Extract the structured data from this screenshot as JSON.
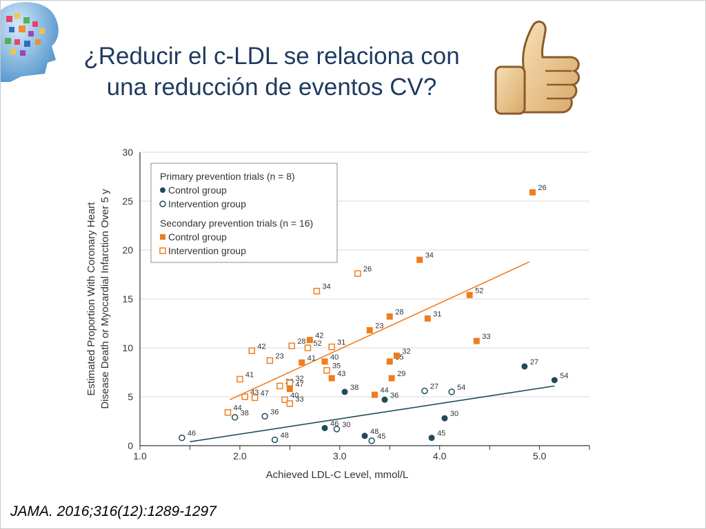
{
  "slide": {
    "title_line1": "¿Reducir el c-LDL se relaciona con",
    "title_line2": "una reducción de eventos CV?",
    "citation": "JAMA. 2016;316(12):1289-1297",
    "icons": [
      "brain-logo-icon",
      "thumbs-up-icon"
    ]
  },
  "colors": {
    "primary": "#1f4a5a",
    "secondary": "#ee7d1f",
    "title": "#1f3a5f",
    "grid": "#d9d9d9"
  },
  "chart_data": {
    "type": "scatter",
    "xlabel": "Achieved LDL-C Level, mmol/L",
    "ylabel": [
      "Estimated Proportion With Coronary Heart",
      "Disease Death or Myocardial Infarction Over 5 y"
    ],
    "xlim": [
      1.0,
      5.5
    ],
    "ylim": [
      0,
      30
    ],
    "xticks": [
      "1.0",
      "2.0",
      "3.0",
      "4.0",
      "5.0"
    ],
    "yticks": [
      "0",
      "5",
      "10",
      "15",
      "20",
      "25",
      "30"
    ],
    "grid": true,
    "legend_position": "top-left",
    "legend": {
      "heading_primary": "Primary prevention trials (n = 8)",
      "heading_secondary": "Secondary prevention trials (n = 16)",
      "control": "Control group",
      "intervention": "Intervention group"
    },
    "series": [
      {
        "name": "Control group",
        "group": "primary",
        "marker": "filled-circle",
        "points": [
          {
            "x": 2.85,
            "y": 1.8,
            "label": "46"
          },
          {
            "x": 3.05,
            "y": 5.5,
            "label": "38"
          },
          {
            "x": 3.25,
            "y": 1.0,
            "label": "48"
          },
          {
            "x": 3.45,
            "y": 4.7,
            "label": "36"
          },
          {
            "x": 3.92,
            "y": 0.8,
            "label": "45"
          },
          {
            "x": 4.05,
            "y": 2.8,
            "label": "30"
          },
          {
            "x": 4.85,
            "y": 8.1,
            "label": "27"
          },
          {
            "x": 5.15,
            "y": 6.7,
            "label": "54"
          }
        ]
      },
      {
        "name": "Intervention group",
        "group": "primary",
        "marker": "open-circle",
        "points": [
          {
            "x": 1.42,
            "y": 0.8,
            "label": "46"
          },
          {
            "x": 1.95,
            "y": 2.9,
            "label": "38"
          },
          {
            "x": 2.25,
            "y": 3.0,
            "label": "36"
          },
          {
            "x": 2.35,
            "y": 0.6,
            "label": "48"
          },
          {
            "x": 2.97,
            "y": 1.7,
            "label": "30"
          },
          {
            "x": 3.32,
            "y": 0.5,
            "label": "45"
          },
          {
            "x": 3.85,
            "y": 5.6,
            "label": "27"
          },
          {
            "x": 4.12,
            "y": 5.5,
            "label": "54"
          }
        ]
      },
      {
        "name": "Control group",
        "group": "secondary",
        "marker": "filled-square",
        "points": [
          {
            "x": 2.62,
            "y": 8.5,
            "label": "41"
          },
          {
            "x": 2.7,
            "y": 10.8,
            "label": "42"
          },
          {
            "x": 2.5,
            "y": 5.8,
            "label": "47"
          },
          {
            "x": 2.85,
            "y": 8.6,
            "label": "40"
          },
          {
            "x": 2.92,
            "y": 6.9,
            "label": "43"
          },
          {
            "x": 3.3,
            "y": 11.8,
            "label": "23"
          },
          {
            "x": 3.35,
            "y": 5.2,
            "label": "44"
          },
          {
            "x": 3.5,
            "y": 8.6,
            "label": "35"
          },
          {
            "x": 3.5,
            "y": 13.2,
            "label": "28"
          },
          {
            "x": 3.52,
            "y": 6.9,
            "label": "29"
          },
          {
            "x": 3.57,
            "y": 9.2,
            "label": "32"
          },
          {
            "x": 3.8,
            "y": 19.0,
            "label": "34"
          },
          {
            "x": 3.88,
            "y": 13.0,
            "label": "31"
          },
          {
            "x": 4.3,
            "y": 15.4,
            "label": "52"
          },
          {
            "x": 4.37,
            "y": 10.7,
            "label": "33"
          },
          {
            "x": 4.93,
            "y": 25.9,
            "label": "26"
          }
        ]
      },
      {
        "name": "Intervention group",
        "group": "secondary",
        "marker": "open-square",
        "points": [
          {
            "x": 1.88,
            "y": 3.4,
            "label": "44"
          },
          {
            "x": 2.0,
            "y": 6.8,
            "label": "41"
          },
          {
            "x": 2.05,
            "y": 5.0,
            "label": "43"
          },
          {
            "x": 2.12,
            "y": 9.7,
            "label": "42"
          },
          {
            "x": 2.15,
            "y": 4.9,
            "label": "47"
          },
          {
            "x": 2.3,
            "y": 8.7,
            "label": "23"
          },
          {
            "x": 2.4,
            "y": 6.1,
            "label": "29"
          },
          {
            "x": 2.45,
            "y": 4.7,
            "label": "40"
          },
          {
            "x": 2.5,
            "y": 4.3,
            "label": "33"
          },
          {
            "x": 2.5,
            "y": 6.4,
            "label": "32"
          },
          {
            "x": 2.52,
            "y": 10.2,
            "label": "28"
          },
          {
            "x": 2.68,
            "y": 10.0,
            "label": "52"
          },
          {
            "x": 2.77,
            "y": 15.8,
            "label": "34"
          },
          {
            "x": 2.87,
            "y": 7.7,
            "label": "35"
          },
          {
            "x": 2.92,
            "y": 10.1,
            "label": "31"
          },
          {
            "x": 3.18,
            "y": 17.6,
            "label": "26"
          }
        ]
      }
    ],
    "trendlines": [
      {
        "group": "primary",
        "x": [
          1.5,
          5.15
        ],
        "y": [
          0.4,
          6.1
        ]
      },
      {
        "group": "secondary",
        "x": [
          1.9,
          4.9
        ],
        "y": [
          4.7,
          18.8
        ]
      }
    ]
  }
}
